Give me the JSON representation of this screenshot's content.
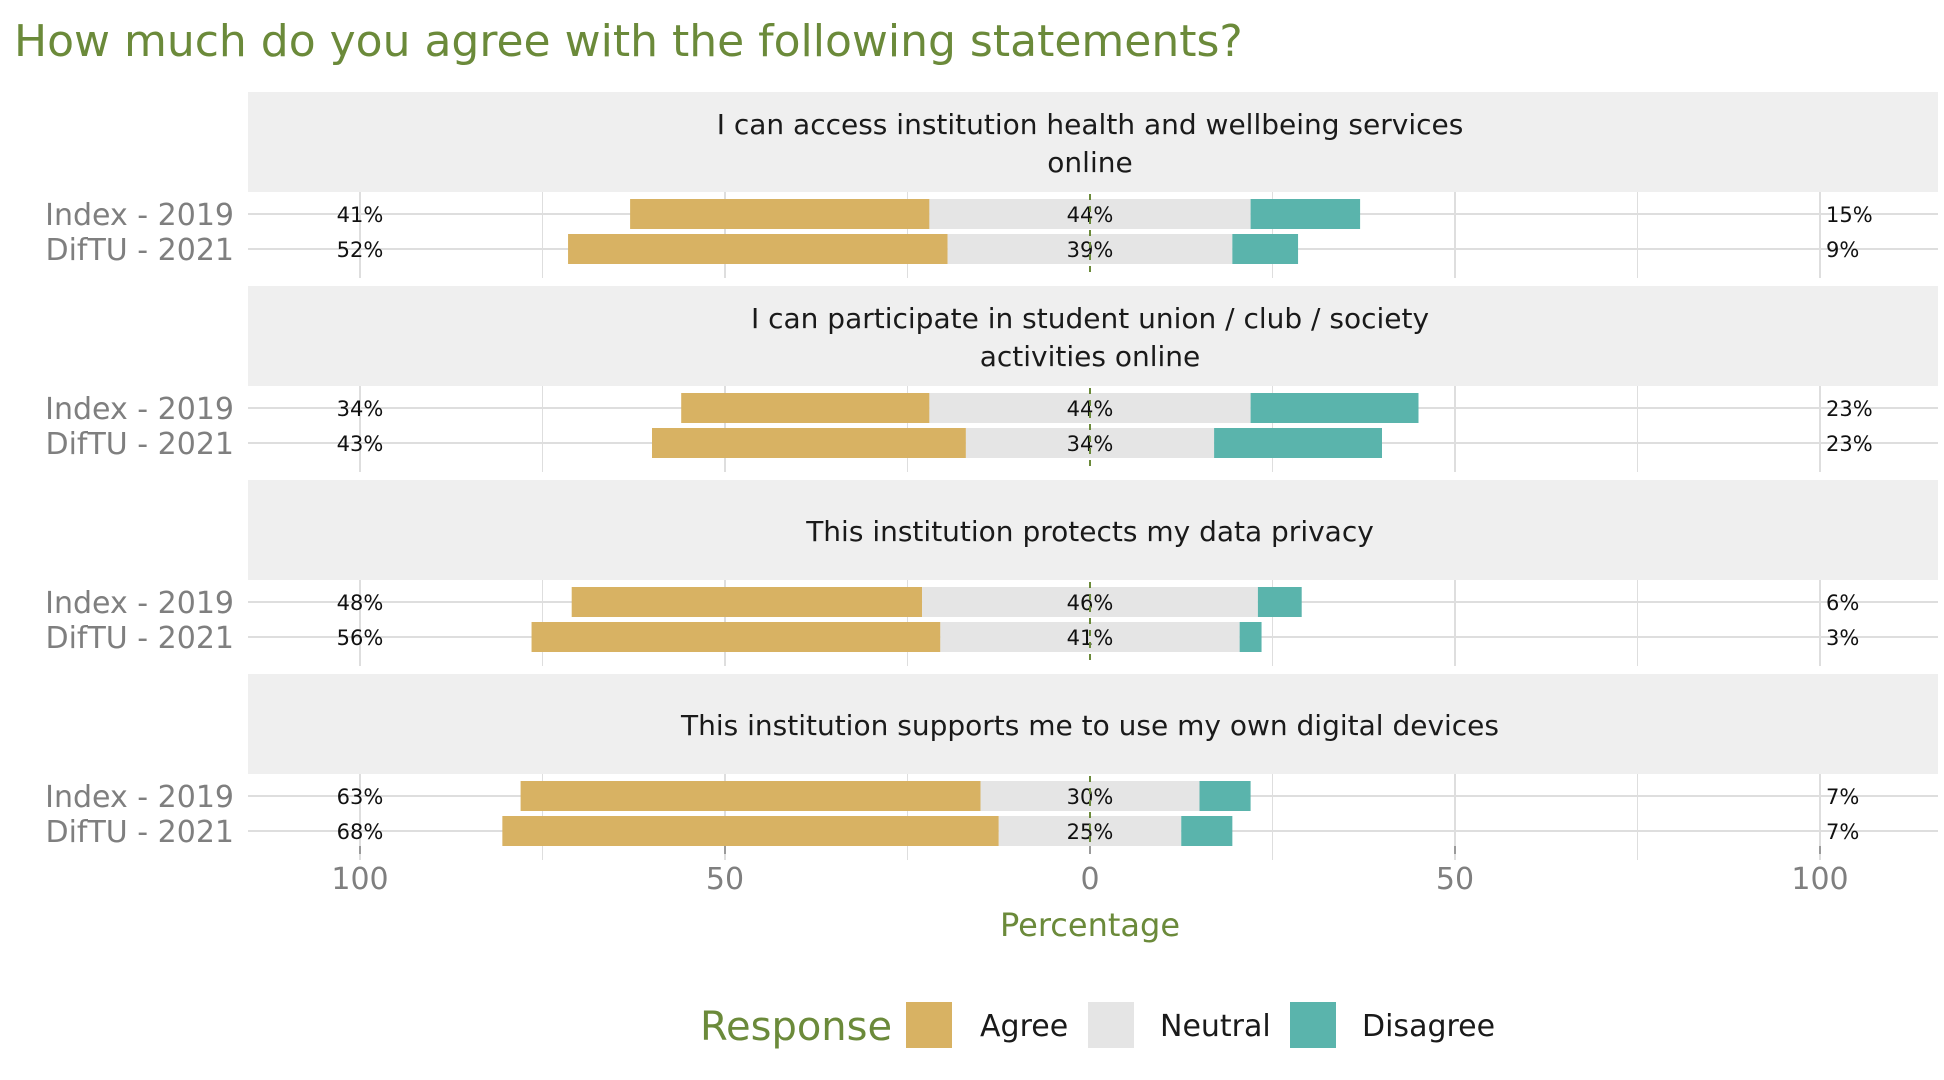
{
  "chart_data": {
    "type": "bar",
    "layout": "diverging-stacked-horizontal",
    "title": "How much do you agree with the following statements?",
    "xlabel": "Percentage",
    "xlim": [
      -100,
      100
    ],
    "x_ticks": [
      -100,
      -50,
      0,
      50,
      100
    ],
    "x_tick_labels": [
      "100",
      "50",
      "0",
      "50",
      "100"
    ],
    "grid": true,
    "legend": {
      "title": "Response",
      "position": "bottom",
      "entries": [
        "Agree",
        "Neutral",
        "Disagree"
      ]
    },
    "colors": {
      "Agree": "#d8b263",
      "Neutral": "#e5e5e5",
      "Disagree": "#5ab4ac",
      "title": "#6b8a3a",
      "panel_strip": "#efefef",
      "grid": "#dedede",
      "axis_text": "#7f7f7f"
    },
    "categories": [
      "Index - 2019",
      "DifTU - 2021"
    ],
    "panels": [
      {
        "strip": [
          "I can access institution health and wellbeing services",
          "online"
        ],
        "rows": [
          {
            "label": "Index - 2019",
            "agree": 41,
            "neutral": 44,
            "disagree": 15,
            "agree_label": "41%",
            "neutral_label": "44%",
            "disagree_label": "15%"
          },
          {
            "label": "DifTU - 2021",
            "agree": 52,
            "neutral": 39,
            "disagree": 9,
            "agree_label": "52%",
            "neutral_label": "39%",
            "disagree_label": "9%"
          }
        ]
      },
      {
        "strip": [
          "I can participate in student union / club / society",
          "activities online"
        ],
        "rows": [
          {
            "label": "Index - 2019",
            "agree": 34,
            "neutral": 44,
            "disagree": 23,
            "agree_label": "34%",
            "neutral_label": "44%",
            "disagree_label": "23%"
          },
          {
            "label": "DifTU - 2021",
            "agree": 43,
            "neutral": 34,
            "disagree": 23,
            "agree_label": "43%",
            "neutral_label": "34%",
            "disagree_label": "23%"
          }
        ]
      },
      {
        "strip": [
          "This institution protects my data privacy"
        ],
        "rows": [
          {
            "label": "Index - 2019",
            "agree": 48,
            "neutral": 46,
            "disagree": 6,
            "agree_label": "48%",
            "neutral_label": "46%",
            "disagree_label": "6%"
          },
          {
            "label": "DifTU - 2021",
            "agree": 56,
            "neutral": 41,
            "disagree": 3,
            "agree_label": "56%",
            "neutral_label": "41%",
            "disagree_label": "3%"
          }
        ]
      },
      {
        "strip": [
          "This institution supports me to use my own digital devices"
        ],
        "rows": [
          {
            "label": "Index - 2019",
            "agree": 63,
            "neutral": 30,
            "disagree": 7,
            "agree_label": "63%",
            "neutral_label": "30%",
            "disagree_label": "7%"
          },
          {
            "label": "DifTU - 2021",
            "agree": 68,
            "neutral": 25,
            "disagree": 7,
            "agree_label": "68%",
            "neutral_label": "25%",
            "disagree_label": "7%"
          }
        ]
      }
    ]
  }
}
